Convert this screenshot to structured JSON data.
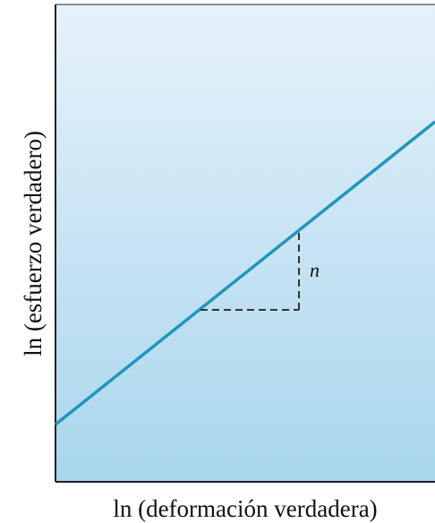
{
  "figure": {
    "y_axis_label": "ln (esfuerzo verdadero)",
    "x_axis_label": "ln (deformación verdadera)",
    "slope_label": "n"
  },
  "colors": {
    "background_top": "#e6f2fb",
    "background_bottom": "#a9d6ec",
    "line": "#1f96bf",
    "frame": "#222222",
    "dashes": "#333333"
  }
}
